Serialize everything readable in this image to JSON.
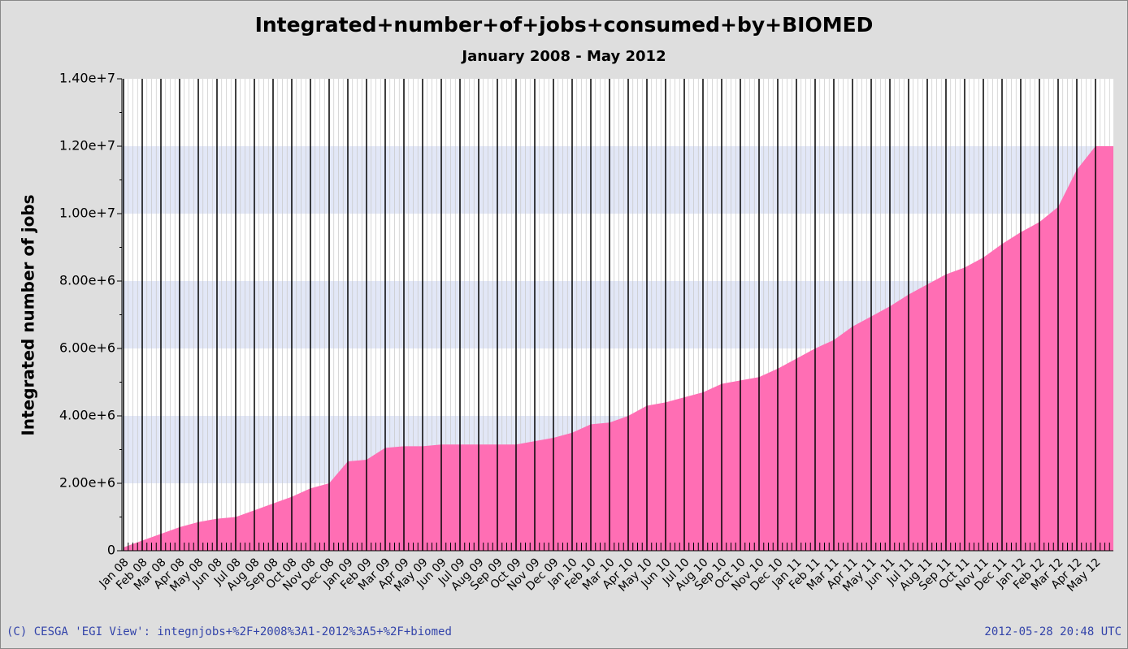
{
  "chart_data": {
    "type": "area",
    "title": "Integrated+number+of+jobs+consumed+by+BIOMED",
    "subtitle": "January 2008 - May 2012",
    "y_label": "Integrated number of jobs",
    "footer_left": "(C) CESGA 'EGI View': integnjobs+%2F+2008%3A1-2012%3A5+%2F+biomed",
    "footer_right": "2012-05-28 20:48 UTC",
    "categories": [
      "Jan 08",
      "Feb 08",
      "Mar 08",
      "Apr 08",
      "May 08",
      "Jun 08",
      "Jul 08",
      "Aug 08",
      "Sep 08",
      "Oct 08",
      "Nov 08",
      "Dec 08",
      "Jan 09",
      "Feb 09",
      "Mar 09",
      "Apr 09",
      "May 09",
      "Jun 09",
      "Jul 09",
      "Aug 09",
      "Sep 09",
      "Oct 09",
      "Nov 09",
      "Dec 09",
      "Jan 10",
      "Feb 10",
      "Mar 10",
      "Apr 10",
      "May 10",
      "Jun 10",
      "Jul 10",
      "Aug 10",
      "Sep 10",
      "Oct 10",
      "Nov 10",
      "Dec 10",
      "Jan 11",
      "Feb 11",
      "Mar 11",
      "Apr 11",
      "May 11",
      "Jun 11",
      "Jul 11",
      "Aug 11",
      "Sep 11",
      "Oct 11",
      "Nov 11",
      "Dec 11",
      "Jan 12",
      "Feb 12",
      "Mar 12",
      "Apr 12",
      "May 12"
    ],
    "series": [
      {
        "name": "Integrated number of jobs",
        "color": "#ff6eb4",
        "values": [
          100000,
          300000,
          500000,
          700000,
          850000,
          950000,
          1000000,
          1200000,
          1400000,
          1600000,
          1850000,
          2000000,
          2650000,
          2700000,
          3050000,
          3100000,
          3100000,
          3150000,
          3150000,
          3150000,
          3150000,
          3150000,
          3250000,
          3350000,
          3500000,
          3750000,
          3800000,
          4000000,
          4300000,
          4400000,
          4550000,
          4700000,
          4950000,
          5050000,
          5150000,
          5400000,
          5700000,
          6000000,
          6250000,
          6650000,
          6950000,
          7250000,
          7600000,
          7900000,
          8200000,
          8400000,
          8700000,
          9100000,
          9450000,
          9750000,
          10200000,
          11300000,
          12000000
        ]
      }
    ],
    "ylim": [
      0,
      14000000
    ],
    "yticks": [
      0,
      {
        "value": 2000000,
        "label": "2.00e+6"
      },
      {
        "value": 4000000,
        "label": "4.00e+6"
      },
      {
        "value": 6000000,
        "label": "6.00e+6"
      },
      {
        "value": 8000000,
        "label": "8.00e+6"
      },
      {
        "value": 10000000,
        "label": "1.00e+7"
      },
      {
        "value": 12000000,
        "label": "1.20e+7"
      },
      {
        "value": 14000000,
        "label": "1.40e+7"
      }
    ],
    "grid": true
  }
}
